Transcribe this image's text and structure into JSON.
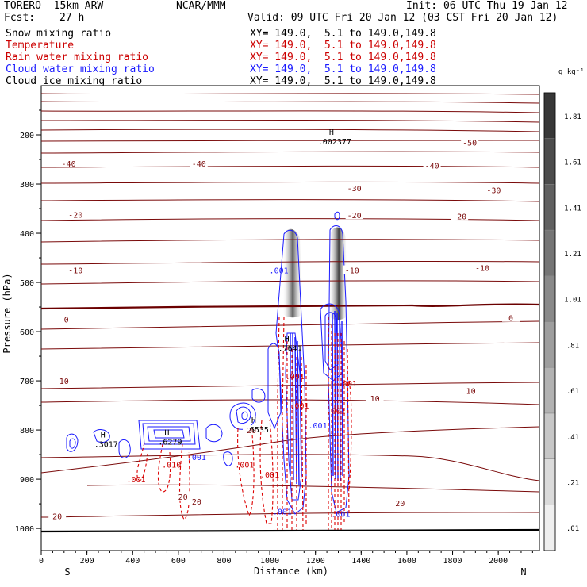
{
  "header": {
    "model": "TORERO  15km ARW",
    "org": "NCAR/MMM",
    "init": "Init: 06 UTC Thu 19 Jan 12",
    "fcst_label": "Fcst:",
    "fcst_value": "27 h",
    "valid": "Valid: 09 UTC Fri 20 Jan 12 (03 CST Fri 20 Jan 12)"
  },
  "fields": [
    {
      "name": "Snow mixing ratio",
      "xsec": "XY= 149.0,  5.1 to 149.0,149.8",
      "color": "#000000"
    },
    {
      "name": "Temperature",
      "xsec": "XY= 149.0,  5.1 to 149.0,149.8",
      "color": "#cc0000"
    },
    {
      "name": "Rain water mixing ratio",
      "xsec": "XY= 149.0,  5.1 to 149.0,149.8",
      "color": "#cc0000"
    },
    {
      "name": "Cloud water mixing ratio",
      "xsec": "XY= 149.0,  5.1 to 149.0,149.8",
      "color": "#1a1aff"
    },
    {
      "name": "Cloud ice mixing ratio",
      "xsec": "XY= 149.0,  5.1 to 149.0,149.8",
      "color": "#000000"
    }
  ],
  "chart_data": {
    "type": "contour cross-section",
    "xlabel": "Distance (km)",
    "ylabel": "Pressure (hPa)",
    "x_ticks": [
      0,
      200,
      400,
      600,
      800,
      1000,
      1200,
      1400,
      1600,
      1800,
      2000
    ],
    "y_ticks": [
      200,
      300,
      400,
      500,
      600,
      700,
      800,
      900,
      1000
    ],
    "xlim": [
      0,
      2180
    ],
    "ylim": [
      1045,
      100
    ],
    "x_end_labels": {
      "left": "S",
      "right": "N"
    },
    "colorbar": {
      "unit": "g kg⁻¹",
      "levels": [
        ".01",
        ".21",
        ".41",
        ".61",
        ".81",
        "1.01",
        "1.21",
        "1.41",
        "1.61",
        "1.81"
      ]
    },
    "temperature_labels": [
      {
        "text": "-50",
        "x": 1875,
        "p": 215
      },
      {
        "text": "-40",
        "x": 120,
        "p": 258
      },
      {
        "text": "-40",
        "x": 690,
        "p": 258
      },
      {
        "text": "-40",
        "x": 1710,
        "p": 262
      },
      {
        "text": "-30",
        "x": 1370,
        "p": 308
      },
      {
        "text": "-30",
        "x": 1980,
        "p": 312
      },
      {
        "text": "-20",
        "x": 150,
        "p": 362
      },
      {
        "text": "-20",
        "x": 1370,
        "p": 363
      },
      {
        "text": "-20",
        "x": 1830,
        "p": 365
      },
      {
        "text": "-10",
        "x": 150,
        "p": 475
      },
      {
        "text": "-10",
        "x": 1360,
        "p": 475
      },
      {
        "text": "-10",
        "x": 1930,
        "p": 470
      },
      {
        "text": "0",
        "x": 110,
        "p": 575
      },
      {
        "text": "0",
        "x": 2055,
        "p": 572
      },
      {
        "text": "10",
        "x": 100,
        "p": 700
      },
      {
        "text": "10",
        "x": 1460,
        "p": 735
      },
      {
        "text": "10",
        "x": 1880,
        "p": 720
      },
      {
        "text": "20",
        "x": 920,
        "p": 800
      },
      {
        "text": "20",
        "x": 620,
        "p": 935
      },
      {
        "text": "20",
        "x": 680,
        "p": 945
      },
      {
        "text": "20",
        "x": 70,
        "p": 975
      },
      {
        "text": "20",
        "x": 1570,
        "p": 948
      }
    ],
    "contour_labels": [
      {
        "text": ".001",
        "x": 1040,
        "p": 475,
        "color": "#1a1aff"
      },
      {
        "text": ".001",
        "x": 680,
        "p": 855,
        "color": "#1a1aff"
      },
      {
        "text": ".001",
        "x": 890,
        "p": 870,
        "color": "#cc0000"
      },
      {
        "text": ".001",
        "x": 1000,
        "p": 890,
        "color": "#cc0000"
      },
      {
        "text": ".001",
        "x": 415,
        "p": 900,
        "color": "#cc0000"
      },
      {
        "text": ".001",
        "x": 1210,
        "p": 790,
        "color": "#1a1aff"
      },
      {
        "text": ".001",
        "x": 1340,
        "p": 705,
        "color": "#cc0000"
      },
      {
        "text": ".001",
        "x": 1130,
        "p": 750,
        "color": "#cc0000"
      },
      {
        "text": ".001",
        "x": 1290,
        "p": 760,
        "color": "#cc0000"
      },
      {
        "text": ".001",
        "x": 1055,
        "p": 965,
        "color": "#1a1aff"
      },
      {
        "text": ".001",
        "x": 1310,
        "p": 970,
        "color": "#1a1aff"
      },
      {
        "text": ".010",
        "x": 570,
        "p": 870,
        "color": "#cc0000"
      },
      {
        "text": ".001",
        "x": 1110,
        "p": 690,
        "color": "#cc0000"
      }
    ],
    "maxima": [
      {
        "label": "H",
        "value": ".002377",
        "x": 1270,
        "p": 200
      },
      {
        "label": "H",
        "value": ".7641",
        "x": 1075,
        "p": 620
      },
      {
        "label": "H",
        "value": ".3017",
        "x": 270,
        "p": 815
      },
      {
        "label": "H",
        "value": ".6279",
        "x": 550,
        "p": 810
      },
      {
        "label": "H",
        "value": ".6535",
        "x": 930,
        "p": 785
      }
    ]
  }
}
